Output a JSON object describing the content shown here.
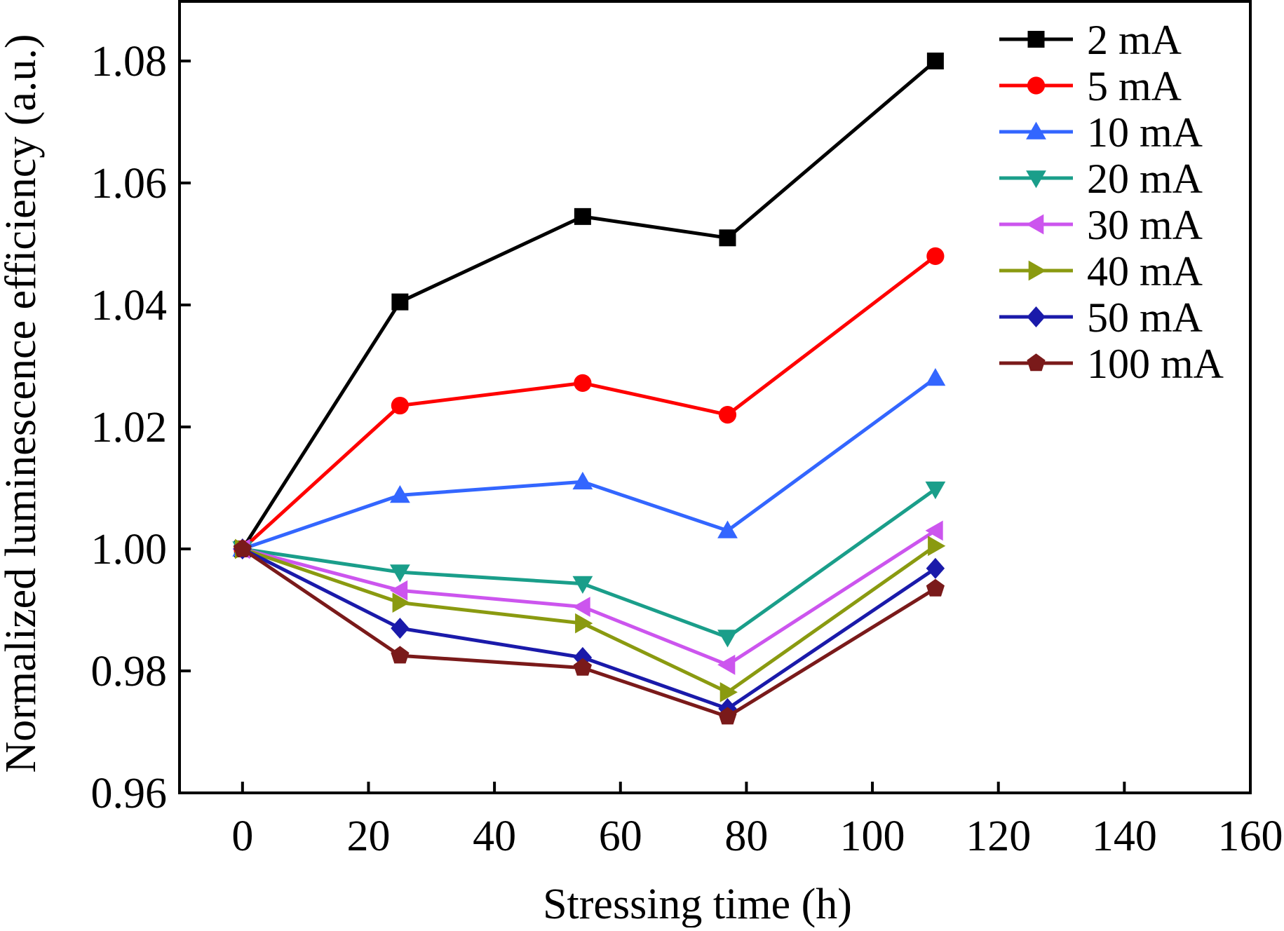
{
  "chart_data": {
    "type": "line",
    "xlabel": "Stressing time (h)",
    "ylabel": "Normalized luminescence efficiency (a.u.)",
    "xlim": [
      -10,
      160
    ],
    "ylim": [
      0.96,
      1.09
    ],
    "xticks": [
      0,
      20,
      40,
      60,
      80,
      100,
      120,
      140,
      160
    ],
    "xtick_labels": [
      "0",
      "20",
      "40",
      "60",
      "80",
      "100",
      "120",
      "140",
      "160"
    ],
    "yticks": [
      0.96,
      0.98,
      1.0,
      1.02,
      1.04,
      1.06,
      1.08
    ],
    "ytick_labels": [
      "0.96",
      "0.98",
      "1.00",
      "1.02",
      "1.04",
      "1.06",
      "1.08"
    ],
    "grid": false,
    "legend_position": "top-right",
    "x": [
      0,
      25,
      54,
      77,
      110
    ],
    "series": [
      {
        "name": "2 mA",
        "marker": "square",
        "color": "#000000",
        "values": [
          1.0,
          1.0405,
          1.0545,
          1.051,
          1.08
        ]
      },
      {
        "name": "5 mA",
        "marker": "circle",
        "color": "#ff0000",
        "values": [
          1.0,
          1.0235,
          1.0272,
          1.022,
          1.048
        ]
      },
      {
        "name": "10 mA",
        "marker": "triangle-up",
        "color": "#3366ff",
        "values": [
          1.0,
          1.0088,
          1.011,
          1.003,
          1.028
        ]
      },
      {
        "name": "20 mA",
        "marker": "triangle-down",
        "color": "#1a9e8a",
        "values": [
          1.0,
          0.9962,
          0.9943,
          0.9855,
          1.0098
        ]
      },
      {
        "name": "30 mA",
        "marker": "triangle-left",
        "color": "#cc55ee",
        "values": [
          1.0,
          0.9932,
          0.9905,
          0.981,
          1.003
        ]
      },
      {
        "name": "40 mA",
        "marker": "triangle-right",
        "color": "#8a9a10",
        "values": [
          1.0,
          0.9912,
          0.9878,
          0.9765,
          1.0005
        ]
      },
      {
        "name": "50 mA",
        "marker": "diamond",
        "color": "#1a1aaa",
        "values": [
          1.0,
          0.987,
          0.9822,
          0.9738,
          0.9968
        ]
      },
      {
        "name": "100 mA",
        "marker": "pentagon",
        "color": "#7a1a1a",
        "values": [
          1.0,
          0.9825,
          0.9805,
          0.9725,
          0.9935
        ]
      }
    ]
  }
}
